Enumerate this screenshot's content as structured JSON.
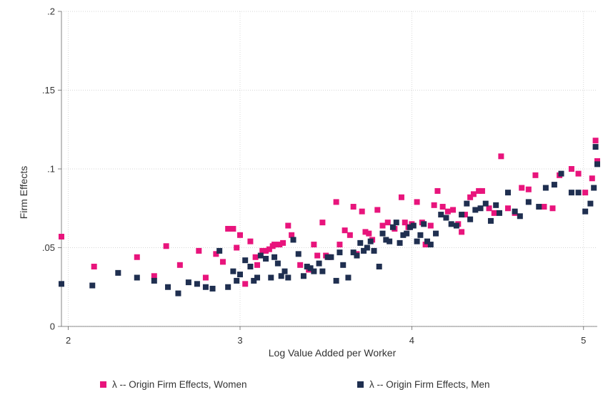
{
  "chart_data": {
    "type": "scatter",
    "xlabel": "Log Value Added per Worker",
    "ylabel": "Firm Effects",
    "xlim": [
      1.96,
      5.08
    ],
    "ylim": [
      0,
      0.2
    ],
    "xticks": [
      2,
      3,
      4,
      5
    ],
    "xtick_labels": [
      "2",
      "3",
      "4",
      "5"
    ],
    "yticks": [
      0,
      0.05,
      0.1,
      0.15,
      0.2
    ],
    "ytick_labels": [
      "0",
      ".05",
      ".1",
      ".15",
      ".2"
    ],
    "grid": true,
    "legend_position": "bottom",
    "series": [
      {
        "name": "λ -- Origin Firm Effects, Women",
        "color": "#e8147c",
        "marker": "square",
        "points": [
          [
            1.96,
            0.057
          ],
          [
            2.15,
            0.038
          ],
          [
            2.4,
            0.044
          ],
          [
            2.5,
            0.032
          ],
          [
            2.57,
            0.051
          ],
          [
            2.65,
            0.039
          ],
          [
            2.76,
            0.048
          ],
          [
            2.8,
            0.031
          ],
          [
            2.86,
            0.046
          ],
          [
            2.9,
            0.041
          ],
          [
            2.93,
            0.062
          ],
          [
            2.96,
            0.062
          ],
          [
            2.98,
            0.05
          ],
          [
            3.0,
            0.058
          ],
          [
            3.03,
            0.027
          ],
          [
            3.06,
            0.054
          ],
          [
            3.09,
            0.044
          ],
          [
            3.1,
            0.039
          ],
          [
            3.13,
            0.048
          ],
          [
            3.15,
            0.048
          ],
          [
            3.17,
            0.049
          ],
          [
            3.19,
            0.051
          ],
          [
            3.2,
            0.052
          ],
          [
            3.23,
            0.052
          ],
          [
            3.25,
            0.053
          ],
          [
            3.28,
            0.064
          ],
          [
            3.3,
            0.058
          ],
          [
            3.35,
            0.039
          ],
          [
            3.4,
            0.036
          ],
          [
            3.43,
            0.052
          ],
          [
            3.45,
            0.045
          ],
          [
            3.48,
            0.066
          ],
          [
            3.5,
            0.045
          ],
          [
            3.52,
            0.044
          ],
          [
            3.56,
            0.079
          ],
          [
            3.58,
            0.052
          ],
          [
            3.61,
            0.061
          ],
          [
            3.64,
            0.058
          ],
          [
            3.66,
            0.076
          ],
          [
            3.68,
            0.046
          ],
          [
            3.71,
            0.073
          ],
          [
            3.73,
            0.06
          ],
          [
            3.75,
            0.059
          ],
          [
            3.77,
            0.055
          ],
          [
            3.8,
            0.074
          ],
          [
            3.83,
            0.064
          ],
          [
            3.86,
            0.066
          ],
          [
            3.9,
            0.062
          ],
          [
            3.94,
            0.082
          ],
          [
            3.96,
            0.066
          ],
          [
            3.98,
            0.063
          ],
          [
            4.0,
            0.065
          ],
          [
            4.03,
            0.079
          ],
          [
            4.06,
            0.066
          ],
          [
            4.08,
            0.052
          ],
          [
            4.11,
            0.064
          ],
          [
            4.13,
            0.077
          ],
          [
            4.15,
            0.086
          ],
          [
            4.18,
            0.076
          ],
          [
            4.21,
            0.073
          ],
          [
            4.24,
            0.074
          ],
          [
            4.27,
            0.065
          ],
          [
            4.29,
            0.06
          ],
          [
            4.31,
            0.071
          ],
          [
            4.34,
            0.082
          ],
          [
            4.36,
            0.084
          ],
          [
            4.39,
            0.086
          ],
          [
            4.41,
            0.086
          ],
          [
            4.45,
            0.075
          ],
          [
            4.48,
            0.072
          ],
          [
            4.52,
            0.108
          ],
          [
            4.56,
            0.075
          ],
          [
            4.6,
            0.072
          ],
          [
            4.64,
            0.088
          ],
          [
            4.68,
            0.087
          ],
          [
            4.72,
            0.096
          ],
          [
            4.77,
            0.076
          ],
          [
            4.82,
            0.075
          ],
          [
            4.86,
            0.096
          ],
          [
            4.93,
            0.1
          ],
          [
            4.97,
            0.097
          ],
          [
            5.01,
            0.085
          ],
          [
            5.05,
            0.094
          ],
          [
            5.07,
            0.118
          ],
          [
            5.08,
            0.105
          ]
        ]
      },
      {
        "name": "λ -- Origin Firm Effects, Men",
        "color": "#1f2f50",
        "marker": "square",
        "points": [
          [
            1.96,
            0.027
          ],
          [
            2.14,
            0.026
          ],
          [
            2.29,
            0.034
          ],
          [
            2.4,
            0.031
          ],
          [
            2.5,
            0.029
          ],
          [
            2.58,
            0.025
          ],
          [
            2.64,
            0.021
          ],
          [
            2.7,
            0.028
          ],
          [
            2.75,
            0.027
          ],
          [
            2.8,
            0.025
          ],
          [
            2.84,
            0.024
          ],
          [
            2.88,
            0.048
          ],
          [
            2.93,
            0.025
          ],
          [
            2.96,
            0.035
          ],
          [
            2.98,
            0.029
          ],
          [
            3.0,
            0.033
          ],
          [
            3.03,
            0.042
          ],
          [
            3.06,
            0.038
          ],
          [
            3.08,
            0.029
          ],
          [
            3.1,
            0.031
          ],
          [
            3.12,
            0.045
          ],
          [
            3.15,
            0.043
          ],
          [
            3.18,
            0.031
          ],
          [
            3.2,
            0.044
          ],
          [
            3.22,
            0.04
          ],
          [
            3.24,
            0.032
          ],
          [
            3.26,
            0.035
          ],
          [
            3.28,
            0.031
          ],
          [
            3.31,
            0.055
          ],
          [
            3.34,
            0.046
          ],
          [
            3.37,
            0.032
          ],
          [
            3.39,
            0.038
          ],
          [
            3.41,
            0.037
          ],
          [
            3.43,
            0.035
          ],
          [
            3.46,
            0.04
          ],
          [
            3.48,
            0.035
          ],
          [
            3.51,
            0.044
          ],
          [
            3.53,
            0.044
          ],
          [
            3.56,
            0.029
          ],
          [
            3.58,
            0.047
          ],
          [
            3.6,
            0.039
          ],
          [
            3.63,
            0.031
          ],
          [
            3.66,
            0.047
          ],
          [
            3.68,
            0.045
          ],
          [
            3.7,
            0.053
          ],
          [
            3.72,
            0.048
          ],
          [
            3.74,
            0.05
          ],
          [
            3.76,
            0.054
          ],
          [
            3.78,
            0.048
          ],
          [
            3.81,
            0.038
          ],
          [
            3.83,
            0.059
          ],
          [
            3.85,
            0.055
          ],
          [
            3.87,
            0.054
          ],
          [
            3.89,
            0.063
          ],
          [
            3.91,
            0.066
          ],
          [
            3.93,
            0.053
          ],
          [
            3.95,
            0.058
          ],
          [
            3.97,
            0.059
          ],
          [
            3.99,
            0.063
          ],
          [
            4.01,
            0.064
          ],
          [
            4.03,
            0.054
          ],
          [
            4.05,
            0.058
          ],
          [
            4.07,
            0.065
          ],
          [
            4.09,
            0.054
          ],
          [
            4.11,
            0.052
          ],
          [
            4.14,
            0.059
          ],
          [
            4.17,
            0.071
          ],
          [
            4.2,
            0.069
          ],
          [
            4.23,
            0.065
          ],
          [
            4.26,
            0.064
          ],
          [
            4.29,
            0.071
          ],
          [
            4.32,
            0.078
          ],
          [
            4.34,
            0.068
          ],
          [
            4.37,
            0.074
          ],
          [
            4.4,
            0.075
          ],
          [
            4.43,
            0.078
          ],
          [
            4.46,
            0.067
          ],
          [
            4.49,
            0.077
          ],
          [
            4.51,
            0.072
          ],
          [
            4.56,
            0.085
          ],
          [
            4.6,
            0.073
          ],
          [
            4.63,
            0.07
          ],
          [
            4.68,
            0.079
          ],
          [
            4.74,
            0.076
          ],
          [
            4.78,
            0.088
          ],
          [
            4.83,
            0.09
          ],
          [
            4.87,
            0.097
          ],
          [
            4.93,
            0.085
          ],
          [
            4.97,
            0.085
          ],
          [
            5.01,
            0.073
          ],
          [
            5.04,
            0.078
          ],
          [
            5.06,
            0.088
          ],
          [
            5.07,
            0.114
          ],
          [
            5.08,
            0.103
          ]
        ]
      }
    ]
  }
}
